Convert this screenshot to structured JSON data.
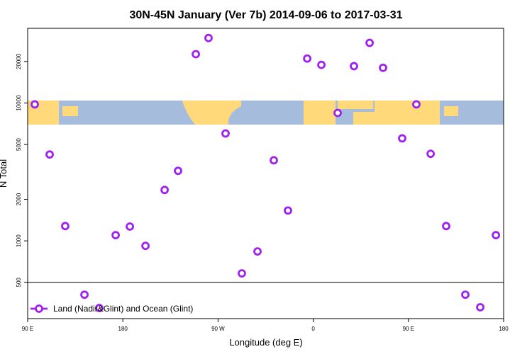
{
  "chart_data": {
    "type": "scatter",
    "title": "30N-45N January (Ver 7b)   2014-09-06 to 2017-03-31",
    "xlabel": "Longitude (deg E)",
    "ylabel": "N Total",
    "log_y": true,
    "legend_position": "bottom-left",
    "hline": 500,
    "xlim": [
      90,
      540
    ],
    "ylim": [
      273,
      34800
    ],
    "xticks": [
      {
        "value": 90,
        "label": "90 E"
      },
      {
        "value": 180,
        "label": "180"
      },
      {
        "value": 270,
        "label": "90 W"
      },
      {
        "value": 360,
        "label": "0"
      },
      {
        "value": 450,
        "label": "90 E"
      },
      {
        "value": 540,
        "label": "180"
      }
    ],
    "yticks": [
      500,
      1000,
      2000,
      5000,
      10000,
      20000
    ],
    "series": [
      {
        "name": "Land (Nadir&Glint) and Ocean (Glint)",
        "color": "#a020f0",
        "x": [
          96.7,
          110.8,
          125.5,
          143.7,
          157.7,
          173.2,
          186.6,
          201.4,
          219.5,
          232.2,
          249,
          261,
          277.1,
          292.5,
          307.3,
          322.7,
          336.1,
          354.3,
          367.7,
          383.1,
          398.5,
          413.3,
          426,
          444.1,
          457.5,
          471,
          485.7,
          503.8,
          517.9,
          532.7
        ],
        "values": [
          9770,
          4230,
          1280,
          407,
          326,
          1100,
          1270,
          920,
          2340,
          3220,
          22600,
          29600,
          6010,
          581,
          838,
          3840,
          1660,
          21000,
          18900,
          8470,
          18500,
          27300,
          18000,
          5540,
          9770,
          4280,
          1280,
          407,
          330,
          1100
        ]
      }
    ]
  }
}
